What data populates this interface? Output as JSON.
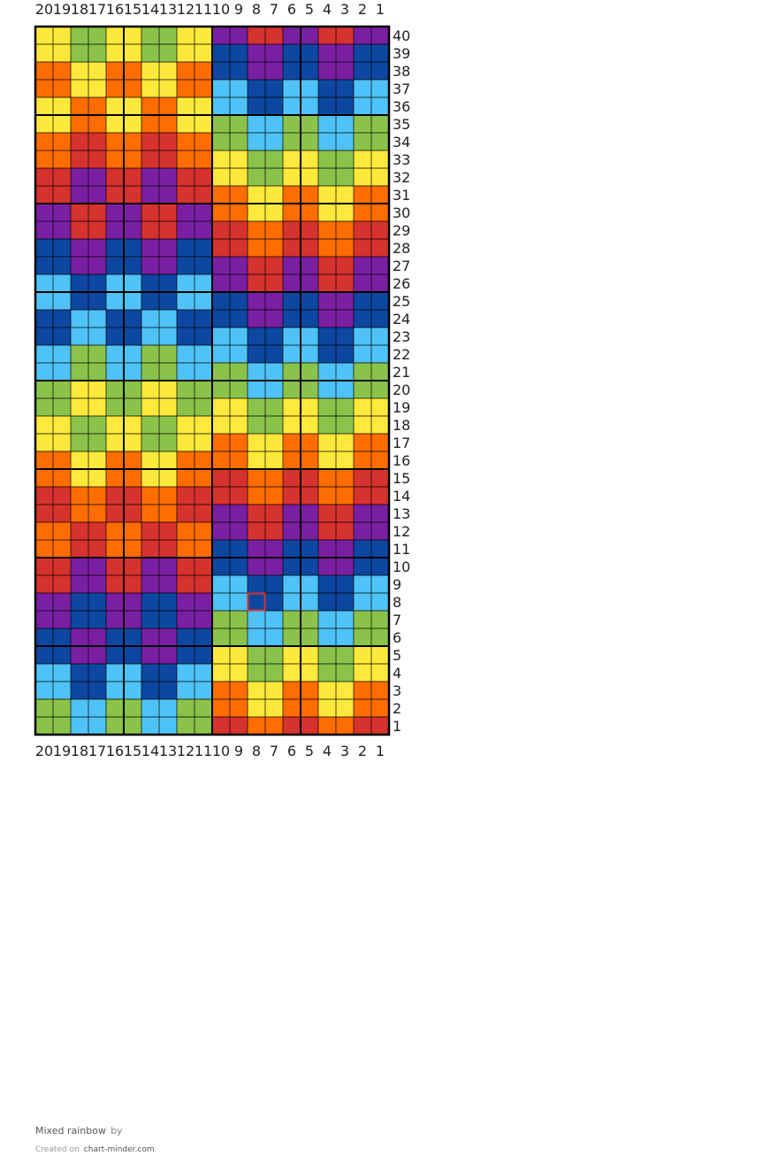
{
  "chart_data": {
    "type": "heatmap",
    "columns_count": 20,
    "rows_count": 40,
    "column_numbering": "right-to-left",
    "row_numbering": "bottom-to-top",
    "bold_grid_every": 5,
    "palette": {
      "Y": "#fde93b",
      "G": "#8bc34a",
      "O": "#ff6d00",
      "R": "#d6322e",
      "P": "#7b1fa2",
      "B": "#0d47a1",
      "L": "#4fc3f7"
    },
    "rows": [
      "YYGGYYGGYYPPRRPPRRPP",
      "YYGGYYGGYYBBPPBBPPBB",
      "OOYYOOYYOOBBPPBBPPBB",
      "OOYYOOYYOOLLBBLLBBLL",
      "YYOOYYOOYYLLBBLLBBLL",
      "YYOOYYOOYYGGLLGGLLGG",
      "OORROORROOGGLLGGLLGG",
      "OORROORROOYYGGYYGGYY",
      "RRPPRRPPRRYYGGYYGGYY",
      "RRPPRRPPRROOYYOOYYOO",
      "PPRRPPRRPPOOYYOOYYOO",
      "PPRRPPRRPPRROORROORR",
      "BBPPBBPPBBRROORROORR",
      "BBPPBBPPBBPPRRPPRRPP",
      "LLBBLLBBLLPPRRPPRRPP",
      "LLBBLLBBLLBBPPBBPPBB",
      "BBLLBBLLBBBBPPBBPPBB",
      "BBLLBBLLBBLLBBLLBBLL",
      "LLGGLLGGLLLLBBLLBBLL",
      "LLGGLLGGLLGGLLGGLLGG",
      "GGYYGGYYGGGGLLGGLLGG",
      "GGYYGGYYGGYYGGYYGGYY",
      "YYGGYYGGYYYYGGYYGGYY",
      "YYGGYYGGYYOOYYOOYYOO",
      "OOYYOOYYOOOOYYOOYYOO",
      "OOYYOOYYOORROORROORR",
      "RROORROORRRROORROORR",
      "RROORROORRPPRRPPRRPP",
      "OORROORROOPPRRPPRRPP",
      "OORROORROOBBPPBBPPBB",
      "RRPPRRPPRRBBPPBBPPBB",
      "RRPPRRPPRRLLBBLLBBLL",
      "PPBBPPBBPPLLBBLLBBLL",
      "PPBBPPBBPPGGLLGGLLGG",
      "BBPPBBPPBBGGLLGGLLGG",
      "BBPPBBPPBBYYGGYYGGYY",
      "LLBBLLBBLLYYGGYYGGYY",
      "LLBBLLBBLLOOYYOOYYOO",
      "GGLLGGLLGGOOYYOOYYOO",
      "GGLLGGLLGGRROORROORR"
    ],
    "highlight": {
      "column": 8,
      "row": 8,
      "color": "#d6322e"
    }
  },
  "credits": {
    "title": "Mixed rainbow",
    "by": "by",
    "created_prefix": "Created on",
    "site": "chart-minder.com"
  }
}
